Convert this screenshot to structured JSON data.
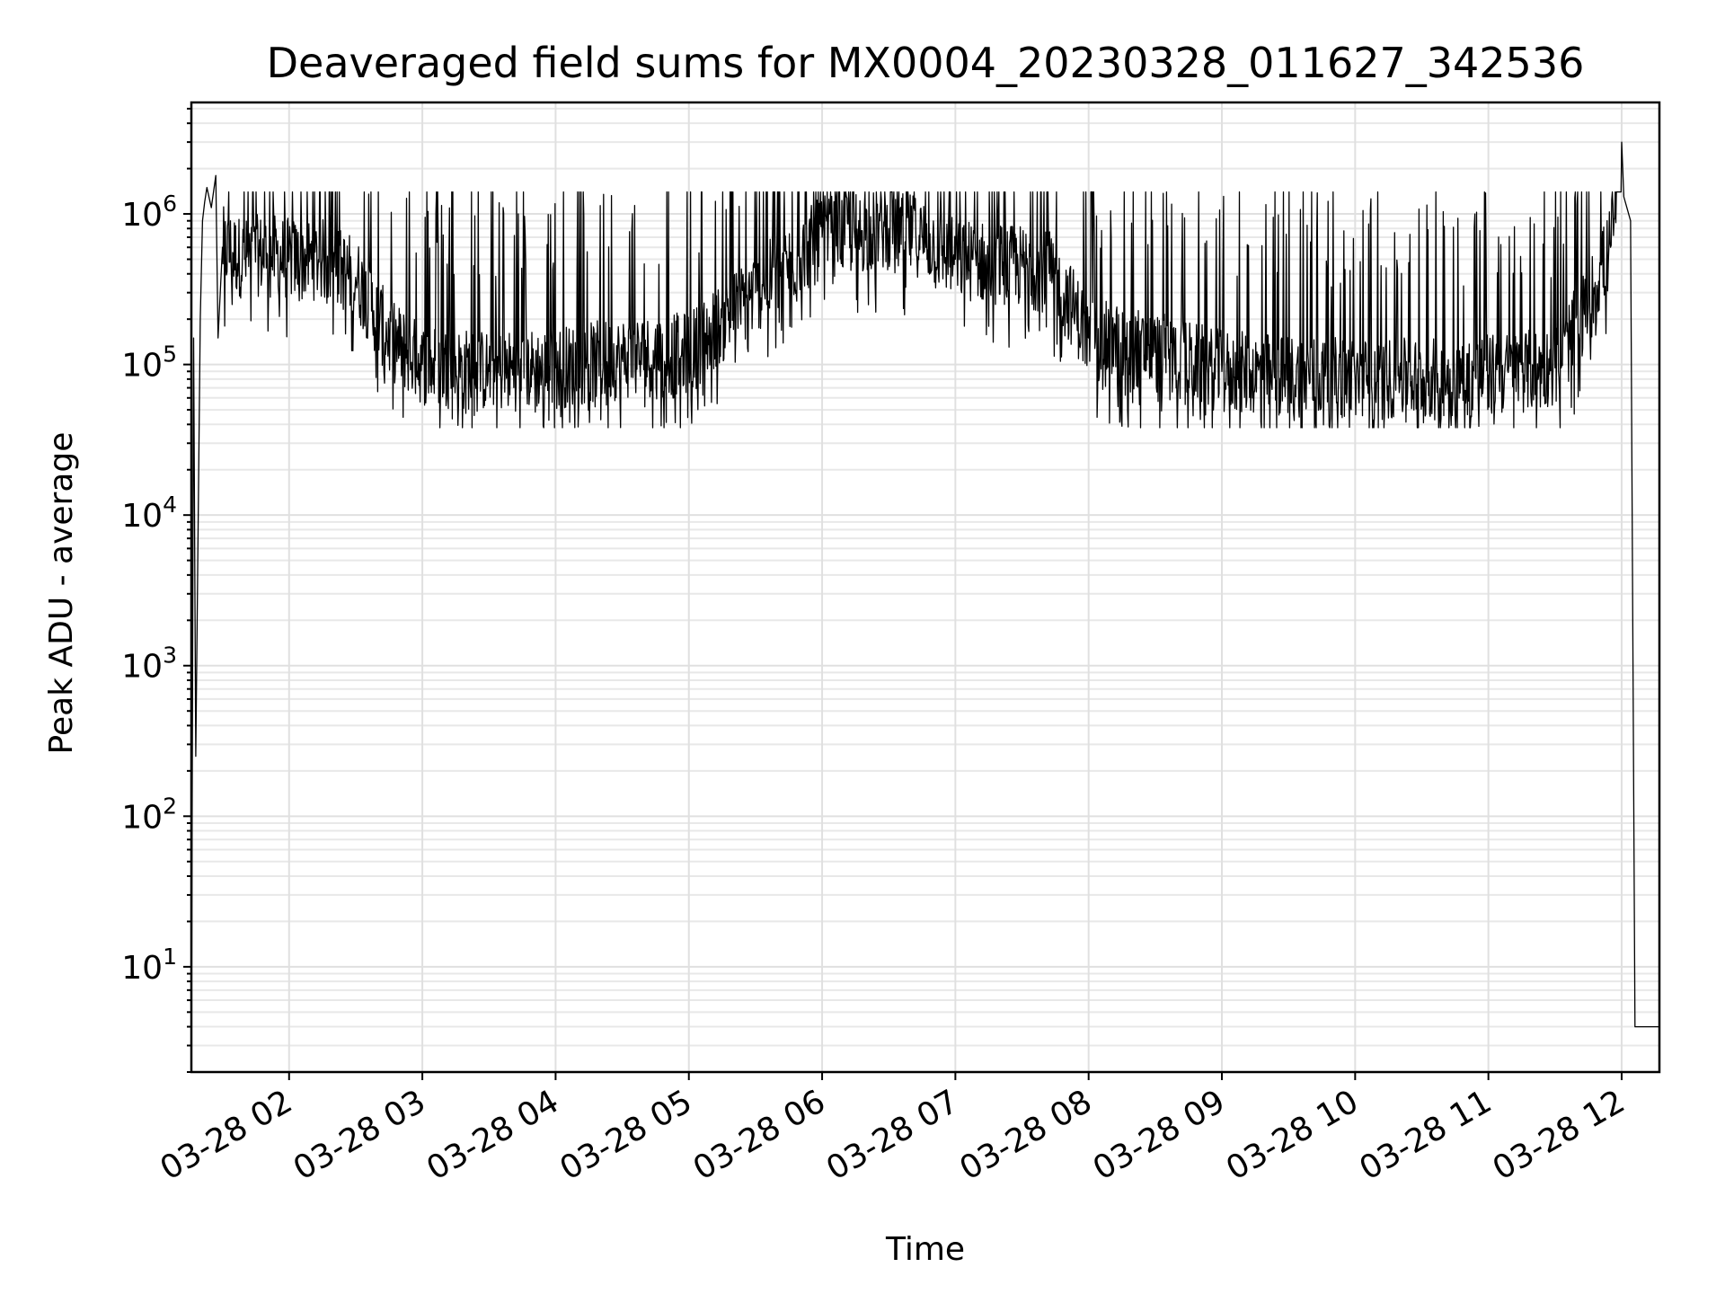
{
  "chart_data": {
    "type": "line",
    "title": "Deaveraged field sums for MX0004_20230328_011627_342536",
    "xlabel": "Time",
    "ylabel": "Peak ADU - average",
    "xlim": [
      "2023-03-28 01:16",
      "2023-03-28 12:17"
    ],
    "ylim": [
      2,
      5500000
    ],
    "yscale": "log",
    "grid": true,
    "x_ticks": [
      {
        "label": "03-28 02",
        "value": "2023-03-28 02:00"
      },
      {
        "label": "03-28 03",
        "value": "2023-03-28 03:00"
      },
      {
        "label": "03-28 04",
        "value": "2023-03-28 04:00"
      },
      {
        "label": "03-28 05",
        "value": "2023-03-28 05:00"
      },
      {
        "label": "03-28 06",
        "value": "2023-03-28 06:00"
      },
      {
        "label": "03-28 07",
        "value": "2023-03-28 07:00"
      },
      {
        "label": "03-28 08",
        "value": "2023-03-28 08:00"
      },
      {
        "label": "03-28 09",
        "value": "2023-03-28 09:00"
      },
      {
        "label": "03-28 10",
        "value": "2023-03-28 10:00"
      },
      {
        "label": "03-28 11",
        "value": "2023-03-28 11:00"
      },
      {
        "label": "03-28 12",
        "value": "2023-03-28 12:00"
      }
    ],
    "y_ticks": [
      {
        "base": "10",
        "exp": "1",
        "value": 10
      },
      {
        "base": "10",
        "exp": "2",
        "value": 100
      },
      {
        "base": "10",
        "exp": "3",
        "value": 1000
      },
      {
        "base": "10",
        "exp": "4",
        "value": 10000
      },
      {
        "base": "10",
        "exp": "5",
        "value": 100000
      },
      {
        "base": "10",
        "exp": "6",
        "value": 1000000
      }
    ],
    "series": [
      {
        "color": "#000000",
        "points": [
          [
            "2023-03-28 01:16",
            2
          ],
          [
            "2023-03-28 01:17",
            150000
          ],
          [
            "2023-03-28 01:18",
            250
          ],
          [
            "2023-03-28 01:20",
            200000
          ],
          [
            "2023-03-28 01:21",
            900000
          ],
          [
            "2023-03-28 01:22",
            1200000
          ],
          [
            "2023-03-28 01:23",
            1500000
          ],
          [
            "2023-03-28 01:25",
            1100000
          ],
          [
            "2023-03-28 01:27",
            1800000
          ],
          [
            "2023-03-28 01:28",
            150000
          ],
          [
            "2023-03-28 01:30",
            600000
          ],
          [
            "2023-03-28 01:40",
            500000
          ],
          [
            "2023-03-28 01:50",
            550000
          ],
          [
            "2023-03-28 02:00",
            500000
          ],
          [
            "2023-03-28 02:15",
            500000
          ],
          [
            "2023-03-28 02:30",
            380000
          ],
          [
            "2023-03-28 02:45",
            150000
          ],
          [
            "2023-03-28 03:00",
            100000
          ],
          [
            "2023-03-28 03:30",
            90000
          ],
          [
            "2023-03-28 04:00",
            95000
          ],
          [
            "2023-03-28 04:30",
            110000
          ],
          [
            "2023-03-28 05:00",
            120000
          ],
          [
            "2023-03-28 05:30",
            300000
          ],
          [
            "2023-03-28 06:00",
            700000
          ],
          [
            "2023-03-28 06:30",
            800000
          ],
          [
            "2023-03-28 06:45",
            700000
          ],
          [
            "2023-03-28 07:00",
            500000
          ],
          [
            "2023-03-28 07:30",
            450000
          ],
          [
            "2023-03-28 07:45",
            400000
          ],
          [
            "2023-03-28 08:00",
            150000
          ],
          [
            "2023-03-28 08:30",
            120000
          ],
          [
            "2023-03-28 09:00",
            90000
          ],
          [
            "2023-03-28 09:30",
            85000
          ],
          [
            "2023-03-28 10:00",
            80000
          ],
          [
            "2023-03-28 10:30",
            80000
          ],
          [
            "2023-03-28 11:00",
            85000
          ],
          [
            "2023-03-28 11:30",
            95000
          ],
          [
            "2023-03-28 11:45",
            250000
          ],
          [
            "2023-03-28 11:55",
            600000
          ],
          [
            "2023-03-28 12:00",
            3000000
          ],
          [
            "2023-03-28 12:01",
            1300000
          ],
          [
            "2023-03-28 12:04",
            900000
          ],
          [
            "2023-03-28 12:06",
            4
          ],
          [
            "2023-03-28 12:17",
            4
          ]
        ]
      }
    ]
  }
}
